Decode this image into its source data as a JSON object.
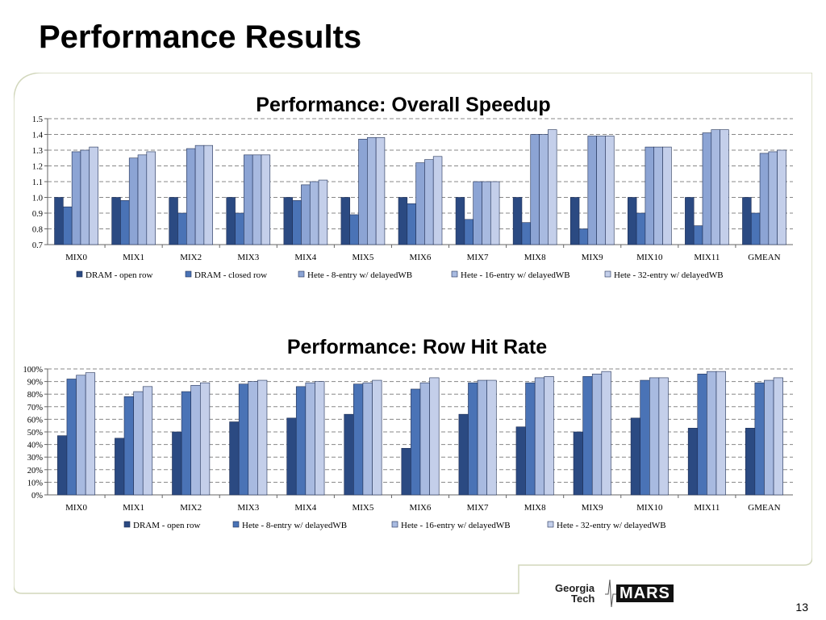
{
  "slide": {
    "title": "Performance Results",
    "page_number": "13",
    "logo": {
      "line1": "Georgia",
      "line2": "Tech",
      "mark": "MARS"
    }
  },
  "colors": {
    "series": [
      "#2b4a82",
      "#4a73b6",
      "#8ca4d4",
      "#a8bae0",
      "#c4cfea"
    ],
    "grid": "#888888",
    "frame": "#d2d7bc"
  },
  "chart_data": [
    {
      "type": "bar",
      "title": "Performance: Overall Speedup",
      "categories": [
        "MIX0",
        "MIX1",
        "MIX2",
        "MIX3",
        "MIX4",
        "MIX5",
        "MIX6",
        "MIX7",
        "MIX8",
        "MIX9",
        "MIX10",
        "MIX11",
        "GMEAN"
      ],
      "yticks": [
        "0.7",
        "0.8",
        "0.9",
        "1.0",
        "1.1",
        "1.2",
        "1.3",
        "1.4",
        "1.5"
      ],
      "ylim": [
        0.7,
        1.5
      ],
      "grid": true,
      "legend": "bottom",
      "series": [
        {
          "name": "DRAM - open row",
          "values": [
            1.0,
            1.0,
            1.0,
            1.0,
            1.0,
            1.0,
            1.0,
            1.0,
            1.0,
            1.0,
            1.0,
            1.0,
            1.0
          ]
        },
        {
          "name": "DRAM - closed row",
          "values": [
            0.94,
            0.98,
            0.9,
            0.9,
            0.98,
            0.89,
            0.96,
            0.86,
            0.84,
            0.8,
            0.9,
            0.82,
            0.9
          ]
        },
        {
          "name": "Hete - 8-entry w/ delayedWB",
          "values": [
            1.29,
            1.25,
            1.31,
            1.27,
            1.08,
            1.37,
            1.22,
            1.1,
            1.4,
            1.39,
            1.32,
            1.41,
            1.28
          ]
        },
        {
          "name": "Hete - 16-entry w/ delayedWB",
          "values": [
            1.3,
            1.27,
            1.33,
            1.27,
            1.1,
            1.38,
            1.24,
            1.1,
            1.4,
            1.39,
            1.32,
            1.43,
            1.29
          ]
        },
        {
          "name": "Hete - 32-entry w/ delayedWB",
          "values": [
            1.32,
            1.29,
            1.33,
            1.27,
            1.11,
            1.38,
            1.26,
            1.1,
            1.43,
            1.39,
            1.32,
            1.43,
            1.3
          ]
        }
      ]
    },
    {
      "type": "bar",
      "title": "Performance: Row Hit Rate",
      "categories": [
        "MIX0",
        "MIX1",
        "MIX2",
        "MIX3",
        "MIX4",
        "MIX5",
        "MIX6",
        "MIX7",
        "MIX8",
        "MIX9",
        "MIX10",
        "MIX11",
        "GMEAN"
      ],
      "yticks": [
        "0%",
        "10%",
        "20%",
        "30%",
        "40%",
        "50%",
        "60%",
        "70%",
        "80%",
        "90%",
        "100%"
      ],
      "ylim": [
        0,
        100
      ],
      "grid": true,
      "legend": "bottom",
      "series": [
        {
          "name": "DRAM - open row",
          "values": [
            47,
            45,
            50,
            58,
            61,
            64,
            37,
            64,
            54,
            50,
            61,
            53,
            53
          ]
        },
        {
          "name": "Hete - 8-entry w/ delayedWB",
          "values": [
            92,
            78,
            82,
            88,
            86,
            88,
            84,
            89,
            89,
            94,
            91,
            96,
            89
          ]
        },
        {
          "name": "Hete - 16-entry w/ delayedWB",
          "values": [
            95,
            82,
            87,
            90,
            89,
            89,
            89,
            91,
            93,
            96,
            93,
            98,
            91
          ]
        },
        {
          "name": "Hete - 32-entry w/ delayedWB",
          "values": [
            97,
            86,
            89,
            91,
            90,
            91,
            93,
            91,
            94,
            98,
            93,
            98,
            93
          ]
        }
      ]
    }
  ]
}
